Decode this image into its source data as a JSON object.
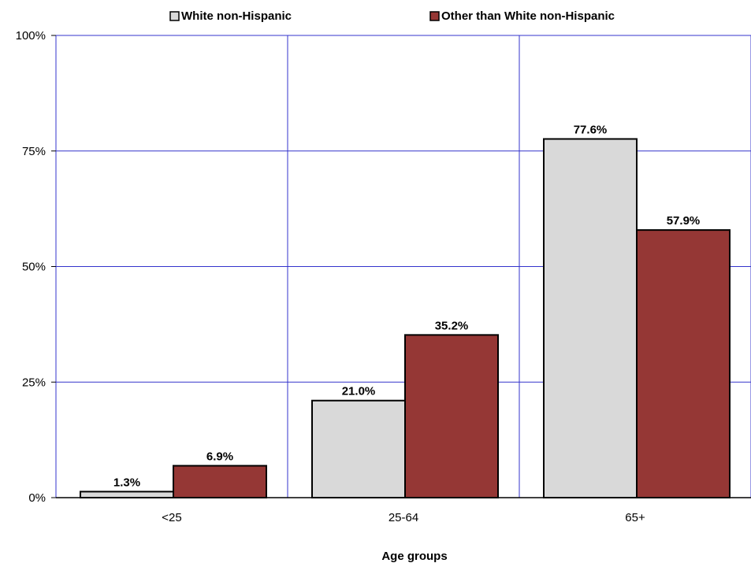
{
  "chart_data": {
    "type": "bar",
    "categories": [
      "<25",
      "25-64",
      "65+"
    ],
    "series": [
      {
        "name": "White non-Hispanic",
        "values": [
          1.3,
          21.0,
          77.6
        ],
        "color": "#d9d9d9"
      },
      {
        "name": "Other than White non-Hispanic",
        "values": [
          6.9,
          35.2,
          57.9
        ],
        "color": "#953735"
      }
    ],
    "data_labels": [
      [
        "1.3%",
        "21.0%",
        "77.6%"
      ],
      [
        "6.9%",
        "35.2%",
        "57.9%"
      ]
    ],
    "yticks": [
      {
        "value": 0,
        "label": "0%"
      },
      {
        "value": 25,
        "label": "25%"
      },
      {
        "value": 50,
        "label": "50%"
      },
      {
        "value": 75,
        "label": "75%"
      },
      {
        "value": 100,
        "label": "100%"
      }
    ],
    "xlabel": "Age groups",
    "ylabel": "",
    "ylim": [
      0,
      100
    ],
    "grid": true,
    "grid_color": "#3333cc",
    "legend_position": "top"
  }
}
